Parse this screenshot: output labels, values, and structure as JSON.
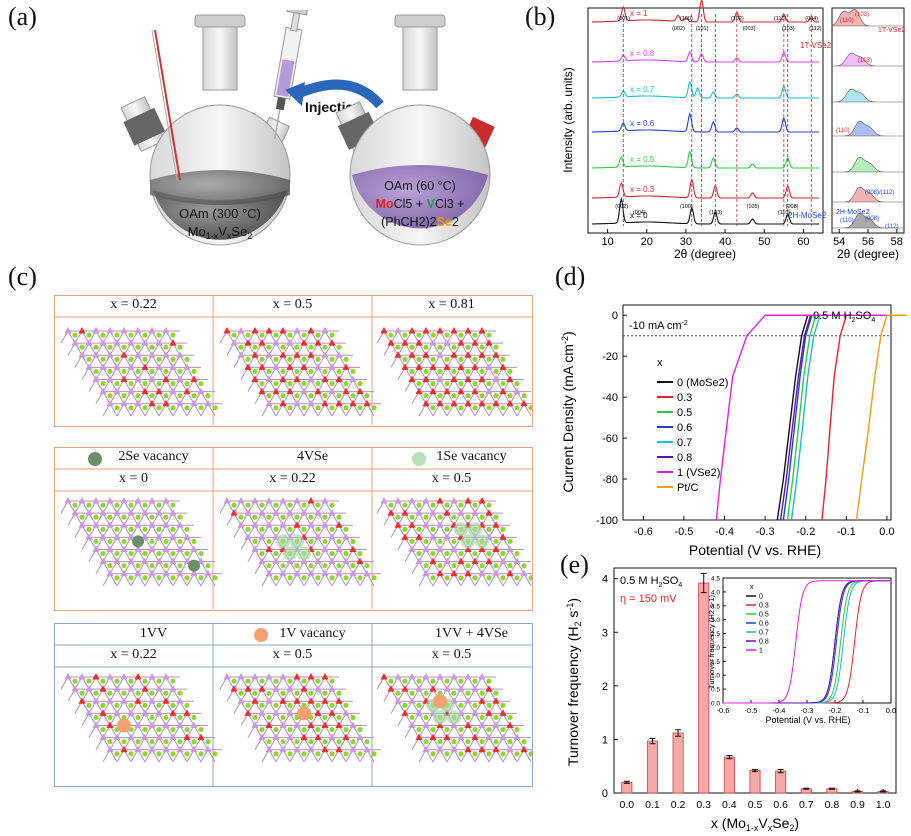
{
  "panels": {
    "a": {
      "letter": "(a)",
      "injection_label": "Injection",
      "left_flask": {
        "line1": "OAm (300 °C)",
        "line2": "Mo1-xVxSe2"
      },
      "right_flask": {
        "line1": "OAm (60 °C)",
        "line2_mo": "Mo",
        "line2_rest": "Cl5 + ",
        "line2_v": "V",
        "line2_end": "Cl3 +",
        "line3": "(PhCH2)2",
        "line3_se": "Se",
        "line3_end": "2"
      }
    },
    "b": {
      "letter": "(b)",
      "ylabel": "Intensity (arb. units)",
      "xlabel_main": "2θ (degree)",
      "xlabel_zoom": "2θ (degree)",
      "x_ticks_main": [
        "10",
        "20",
        "30",
        "40",
        "50",
        "60"
      ],
      "x_ticks_zoom": [
        "54",
        "56",
        "58"
      ],
      "curves": [
        {
          "label": "x = 1",
          "color": "#d62728"
        },
        {
          "label": "x = 0.8",
          "color": "#e040fb"
        },
        {
          "label": "x = 0.7",
          "color": "#17becf"
        },
        {
          "label": "x = 0.6",
          "color": "#1f3fd6"
        },
        {
          "label": "x = 0.5",
          "color": "#2ecc40"
        },
        {
          "label": "x = 0.3",
          "color": "#d62728"
        },
        {
          "label": "x = 0",
          "color": "#111111"
        }
      ],
      "peak_labels_top": [
        "(001)",
        "(002)",
        "(100)",
        "(101)",
        "(102)",
        "(003)",
        "(110)",
        "(103)",
        "(004)",
        "(112)"
      ],
      "peak_labels_bottom": [
        "(002)",
        "(004)",
        "(100)",
        "(103)",
        "(105)",
        "(110)",
        "(008)"
      ],
      "phase_top": "1T-VSe2",
      "phase_bottom": "2H-MoSe2",
      "zoom_labels": {
        "top_110": "(110)",
        "top_103": "(103)",
        "phase_top": "1T-VSe2",
        "r2_103": "(103)",
        "r4_110": "(110)",
        "r6": "(008)/(112)",
        "bottom_phase": "2H-MoSe2",
        "bottom_110": "(110)",
        "bottom_008": "(008)",
        "bottom_112": "(112)"
      }
    },
    "c": {
      "letter": "(c)",
      "row1": [
        "x = 0.22",
        "x = 0.5",
        "x = 0.81"
      ],
      "row2_header": [
        "2Se vacancy",
        "4VSe",
        "1Se vacancy"
      ],
      "row2": [
        "x = 0",
        "x = 0.22",
        "x = 0.5"
      ],
      "row3_header": [
        "1VV",
        "1V vacancy",
        "1VV + 4VSe"
      ],
      "row3": [
        "x = 0.22",
        "x = 0.5",
        "x = 0.5"
      ]
    },
    "d": {
      "letter": "(d)",
      "annotation_electrolyte": "0.5 M H2SO4",
      "annotation_ref": "-10 mA cm-2",
      "legend_title": "x",
      "ylabel": "Current Density (mA cm-2)",
      "xlabel": "Potential (V vs. RHE)",
      "x_ticks": [
        "-0.6",
        "-0.5",
        "-0.4",
        "-0.3",
        "-0.2",
        "-0.1",
        "0.0"
      ],
      "y_ticks": [
        "0",
        "-20",
        "-40",
        "-60",
        "-80",
        "-100"
      ]
    },
    "e": {
      "letter": "(e)",
      "annotation_electrolyte": "0.5 M H2SO4",
      "annotation_eta": "η = 150 mV",
      "ylabel": "Turnover frequency (H2 s-1)",
      "xlabel": "x (Mo1-xVxSe2)",
      "inset": {
        "ylabel": "Turnover frequency (H2 s-1)",
        "xlabel": "Potential (V vs. RHE)",
        "legend_title": "x",
        "x_ticks": [
          "-0.6",
          "-0.5",
          "-0.4",
          "-0.3",
          "-0.2",
          "-0.1",
          "0.0"
        ],
        "y_ticks": [
          "0.0",
          "0.5",
          "1.0",
          "1.5",
          "2.0",
          "2.5",
          "3.0",
          "3.5",
          "4.0",
          "4.5"
        ]
      }
    }
  },
  "chart_data": [
    {
      "type": "line",
      "panel": "d",
      "xlabel": "Potential (V vs. RHE)",
      "ylabel": "Current Density (mA cm-2)",
      "xlim": [
        -0.65,
        0.01
      ],
      "ylim": [
        -100,
        5
      ],
      "series": [
        {
          "name": "0 (MoSe2)",
          "color": "#111111",
          "x": [
            -0.27,
            -0.255,
            -0.24,
            -0.225,
            -0.21,
            -0.195
          ],
          "y": [
            -100,
            -80,
            -55,
            -30,
            -10,
            0
          ]
        },
        {
          "name": "0.3",
          "color": "#e8202a",
          "x": [
            -0.16,
            -0.15,
            -0.14,
            -0.13,
            -0.115,
            -0.1
          ],
          "y": [
            -100,
            -80,
            -55,
            -30,
            -10,
            0
          ]
        },
        {
          "name": "0.5",
          "color": "#2ecc40",
          "x": [
            -0.245,
            -0.232,
            -0.218,
            -0.205,
            -0.19,
            -0.175
          ],
          "y": [
            -100,
            -80,
            -55,
            -30,
            -10,
            0
          ]
        },
        {
          "name": "0.6",
          "color": "#1f3fd6",
          "x": [
            -0.255,
            -0.242,
            -0.228,
            -0.214,
            -0.2,
            -0.185
          ],
          "y": [
            -100,
            -80,
            -55,
            -30,
            -10,
            0
          ]
        },
        {
          "name": "0.7",
          "color": "#17becf",
          "x": [
            -0.235,
            -0.222,
            -0.208,
            -0.195,
            -0.18,
            -0.165
          ],
          "y": [
            -100,
            -80,
            -55,
            -30,
            -10,
            0
          ]
        },
        {
          "name": "0.8",
          "color": "#6a0dad",
          "x": [
            -0.262,
            -0.248,
            -0.233,
            -0.218,
            -0.203,
            -0.188
          ],
          "y": [
            -100,
            -80,
            -55,
            -30,
            -10,
            0
          ]
        },
        {
          "name": "1 (VSe2)",
          "color": "#e020e0",
          "x": [
            -0.42,
            -0.41,
            -0.395,
            -0.38,
            -0.345,
            -0.3
          ],
          "y": [
            -100,
            -80,
            -55,
            -30,
            -10,
            0
          ]
        },
        {
          "name": "Pt/C",
          "color": "#f39c12",
          "x": [
            -0.075,
            -0.062,
            -0.045,
            -0.03,
            -0.015,
            0.0
          ],
          "y": [
            -100,
            -80,
            -55,
            -30,
            -10,
            0
          ]
        }
      ],
      "reference_line": -10
    },
    {
      "type": "bar",
      "panel": "e",
      "xlabel": "x (Mo1-xVxSe2)",
      "ylabel": "Turnover frequency (H2 s-1)",
      "categories": [
        "0.0",
        "0.1",
        "0.2",
        "0.3",
        "0.4",
        "0.5",
        "0.6",
        "0.7",
        "0.8",
        "0.9",
        "1.0"
      ],
      "values": [
        0.2,
        0.97,
        1.12,
        3.92,
        0.67,
        0.42,
        0.41,
        0.08,
        0.08,
        0.03,
        0.03
      ],
      "errors": [
        0.02,
        0.05,
        0.06,
        0.18,
        0.03,
        0.02,
        0.03,
        0.01,
        0.01,
        0.01,
        0.01
      ],
      "y_ticks": [
        "0",
        "1",
        "2",
        "3",
        "4"
      ],
      "ylim": [
        0,
        4.2
      ],
      "color": "#f4a8a8"
    },
    {
      "type": "line",
      "panel": "e-inset",
      "xlim": [
        -0.6,
        0.0
      ],
      "ylim": [
        0,
        4.5
      ],
      "series": [
        {
          "name": "0",
          "color": "#111111",
          "onset": -0.2
        },
        {
          "name": "0.3",
          "color": "#e8202a",
          "onset": -0.13
        },
        {
          "name": "0.5",
          "color": "#2ecc40",
          "onset": -0.18
        },
        {
          "name": "0.6",
          "color": "#1f3fd6",
          "onset": -0.195
        },
        {
          "name": "0.7",
          "color": "#17becf",
          "onset": -0.17
        },
        {
          "name": "0.8",
          "color": "#6a0dad",
          "onset": -0.2
        },
        {
          "name": "1",
          "color": "#e020e0",
          "onset": -0.34
        }
      ]
    }
  ]
}
